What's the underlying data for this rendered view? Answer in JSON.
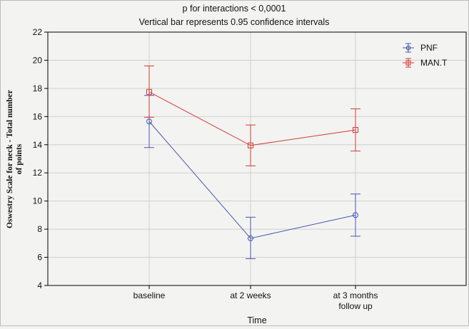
{
  "chart_data": {
    "type": "line",
    "title": "p  for interactions < 0,0001",
    "subtitle": "Vertical bar represents 0.95 confidence intervals",
    "xlabel": "Time",
    "ylabel_lines": [
      "Oswestry Scale for neck - Total number",
      "of points"
    ],
    "categories": [
      [
        "baseline"
      ],
      [
        "at 2 weeks"
      ],
      [
        "at 3 months",
        "follow up"
      ]
    ],
    "ylim": [
      4,
      22
    ],
    "yticks": [
      4,
      6,
      8,
      10,
      12,
      14,
      16,
      18,
      20,
      22
    ],
    "grid": true,
    "legend_position": "top-right",
    "series": [
      {
        "name": "PNF",
        "color": "#4a56b0",
        "marker": "circle",
        "values": [
          15.65,
          7.35,
          9.0
        ],
        "ci_low": [
          13.8,
          5.9,
          7.5
        ],
        "ci_high": [
          17.5,
          8.85,
          10.5
        ]
      },
      {
        "name": "MAN.T",
        "color": "#d23a35",
        "marker": "square",
        "values": [
          17.75,
          13.95,
          15.05
        ],
        "ci_low": [
          15.95,
          12.5,
          13.55
        ],
        "ci_high": [
          19.6,
          15.4,
          16.55
        ]
      }
    ]
  }
}
